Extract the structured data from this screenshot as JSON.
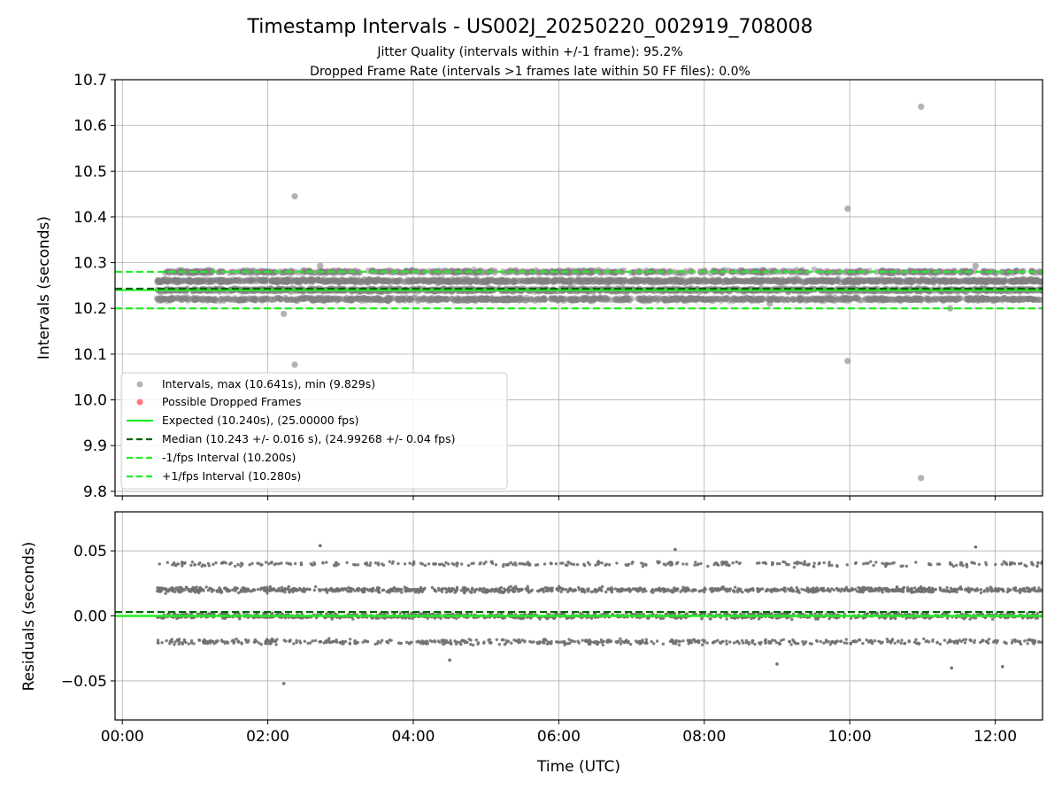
{
  "chart_data": [
    {
      "type": "scatter",
      "title": "Timestamp Intervals - US002J_20250220_002919_708008",
      "subtitle_lines": [
        "Jitter Quality (intervals within +/-1 frame): 95.2%",
        "Dropped Frame Rate (intervals >1 frames late within 50 FF files): 0.0%"
      ],
      "ylabel": "Intervals (seconds)",
      "xlim": [
        -0.1,
        12.65
      ],
      "ylim": [
        9.79,
        10.7
      ],
      "yticks": [
        9.8,
        9.9,
        10.0,
        10.1,
        10.2,
        10.3,
        10.4,
        10.5,
        10.6,
        10.7
      ],
      "grid": true,
      "legend_placement": "lower-left",
      "legend": [
        "Intervals, max (10.641s), min (9.829s)",
        "Possible Dropped Frames",
        "Expected (10.240s), (25.00000 fps)",
        "Median (10.243 +/- 0.016 s), (24.99268 +/- 0.04 fps)",
        "-1/fps Interval (10.200s)",
        "+1/fps Interval (10.280s)"
      ],
      "reference_lines": {
        "expected": 10.24,
        "median": 10.243,
        "minus_1fps": 10.2,
        "plus_1fps": 10.28
      },
      "series": {
        "bulk_time_range_hours": [
          0.48,
          12.65
        ],
        "bulk_levels": [
          10.22,
          10.24,
          10.26,
          10.28
        ],
        "outliers": [
          {
            "x": 2.22,
            "y": 10.188
          },
          {
            "x": 2.37,
            "y": 10.445
          },
          {
            "x": 2.37,
            "y": 10.077
          },
          {
            "x": 2.72,
            "y": 10.293
          },
          {
            "x": 9.97,
            "y": 10.418
          },
          {
            "x": 9.97,
            "y": 10.085
          },
          {
            "x": 10.98,
            "y": 10.641
          },
          {
            "x": 10.98,
            "y": 9.829
          },
          {
            "x": 11.38,
            "y": 10.2
          },
          {
            "x": 11.73,
            "y": 10.293
          },
          {
            "x": 8.9,
            "y": 10.21
          }
        ]
      },
      "colors": {
        "points": "#808080",
        "dropped": "#ff5555",
        "expected": "#22ee22",
        "median": "#006400",
        "band": "#22ee22"
      }
    },
    {
      "type": "scatter",
      "ylabel": "Residuals (seconds)",
      "xlabel": "Time (UTC)",
      "xlim": [
        -0.1,
        12.65
      ],
      "ylim": [
        -0.08,
        0.08
      ],
      "yticks": [
        -0.05,
        0.0,
        0.05
      ],
      "ytick_labels": [
        "−0.05",
        "0.00",
        "0.05"
      ],
      "xticks": [
        0,
        2,
        4,
        6,
        8,
        10,
        12
      ],
      "xtick_labels": [
        "00:00",
        "02:00",
        "04:00",
        "06:00",
        "08:00",
        "10:00",
        "12:00"
      ],
      "grid": true,
      "reference_lines": {
        "expected": 0.0,
        "median": 0.003
      },
      "series": {
        "bulk_levels": [
          -0.02,
          0.0,
          0.02,
          0.04
        ],
        "outliers": [
          {
            "x": 2.22,
            "y": -0.052
          },
          {
            "x": 2.72,
            "y": 0.054
          },
          {
            "x": 11.73,
            "y": 0.053
          },
          {
            "x": 7.6,
            "y": 0.051
          },
          {
            "x": 11.4,
            "y": -0.04
          },
          {
            "x": 12.1,
            "y": -0.039
          },
          {
            "x": 9.0,
            "y": -0.037
          },
          {
            "x": 4.5,
            "y": -0.034
          }
        ]
      },
      "colors": {
        "points": "#707070",
        "expected": "#22ee22",
        "median": "#006400"
      }
    }
  ]
}
